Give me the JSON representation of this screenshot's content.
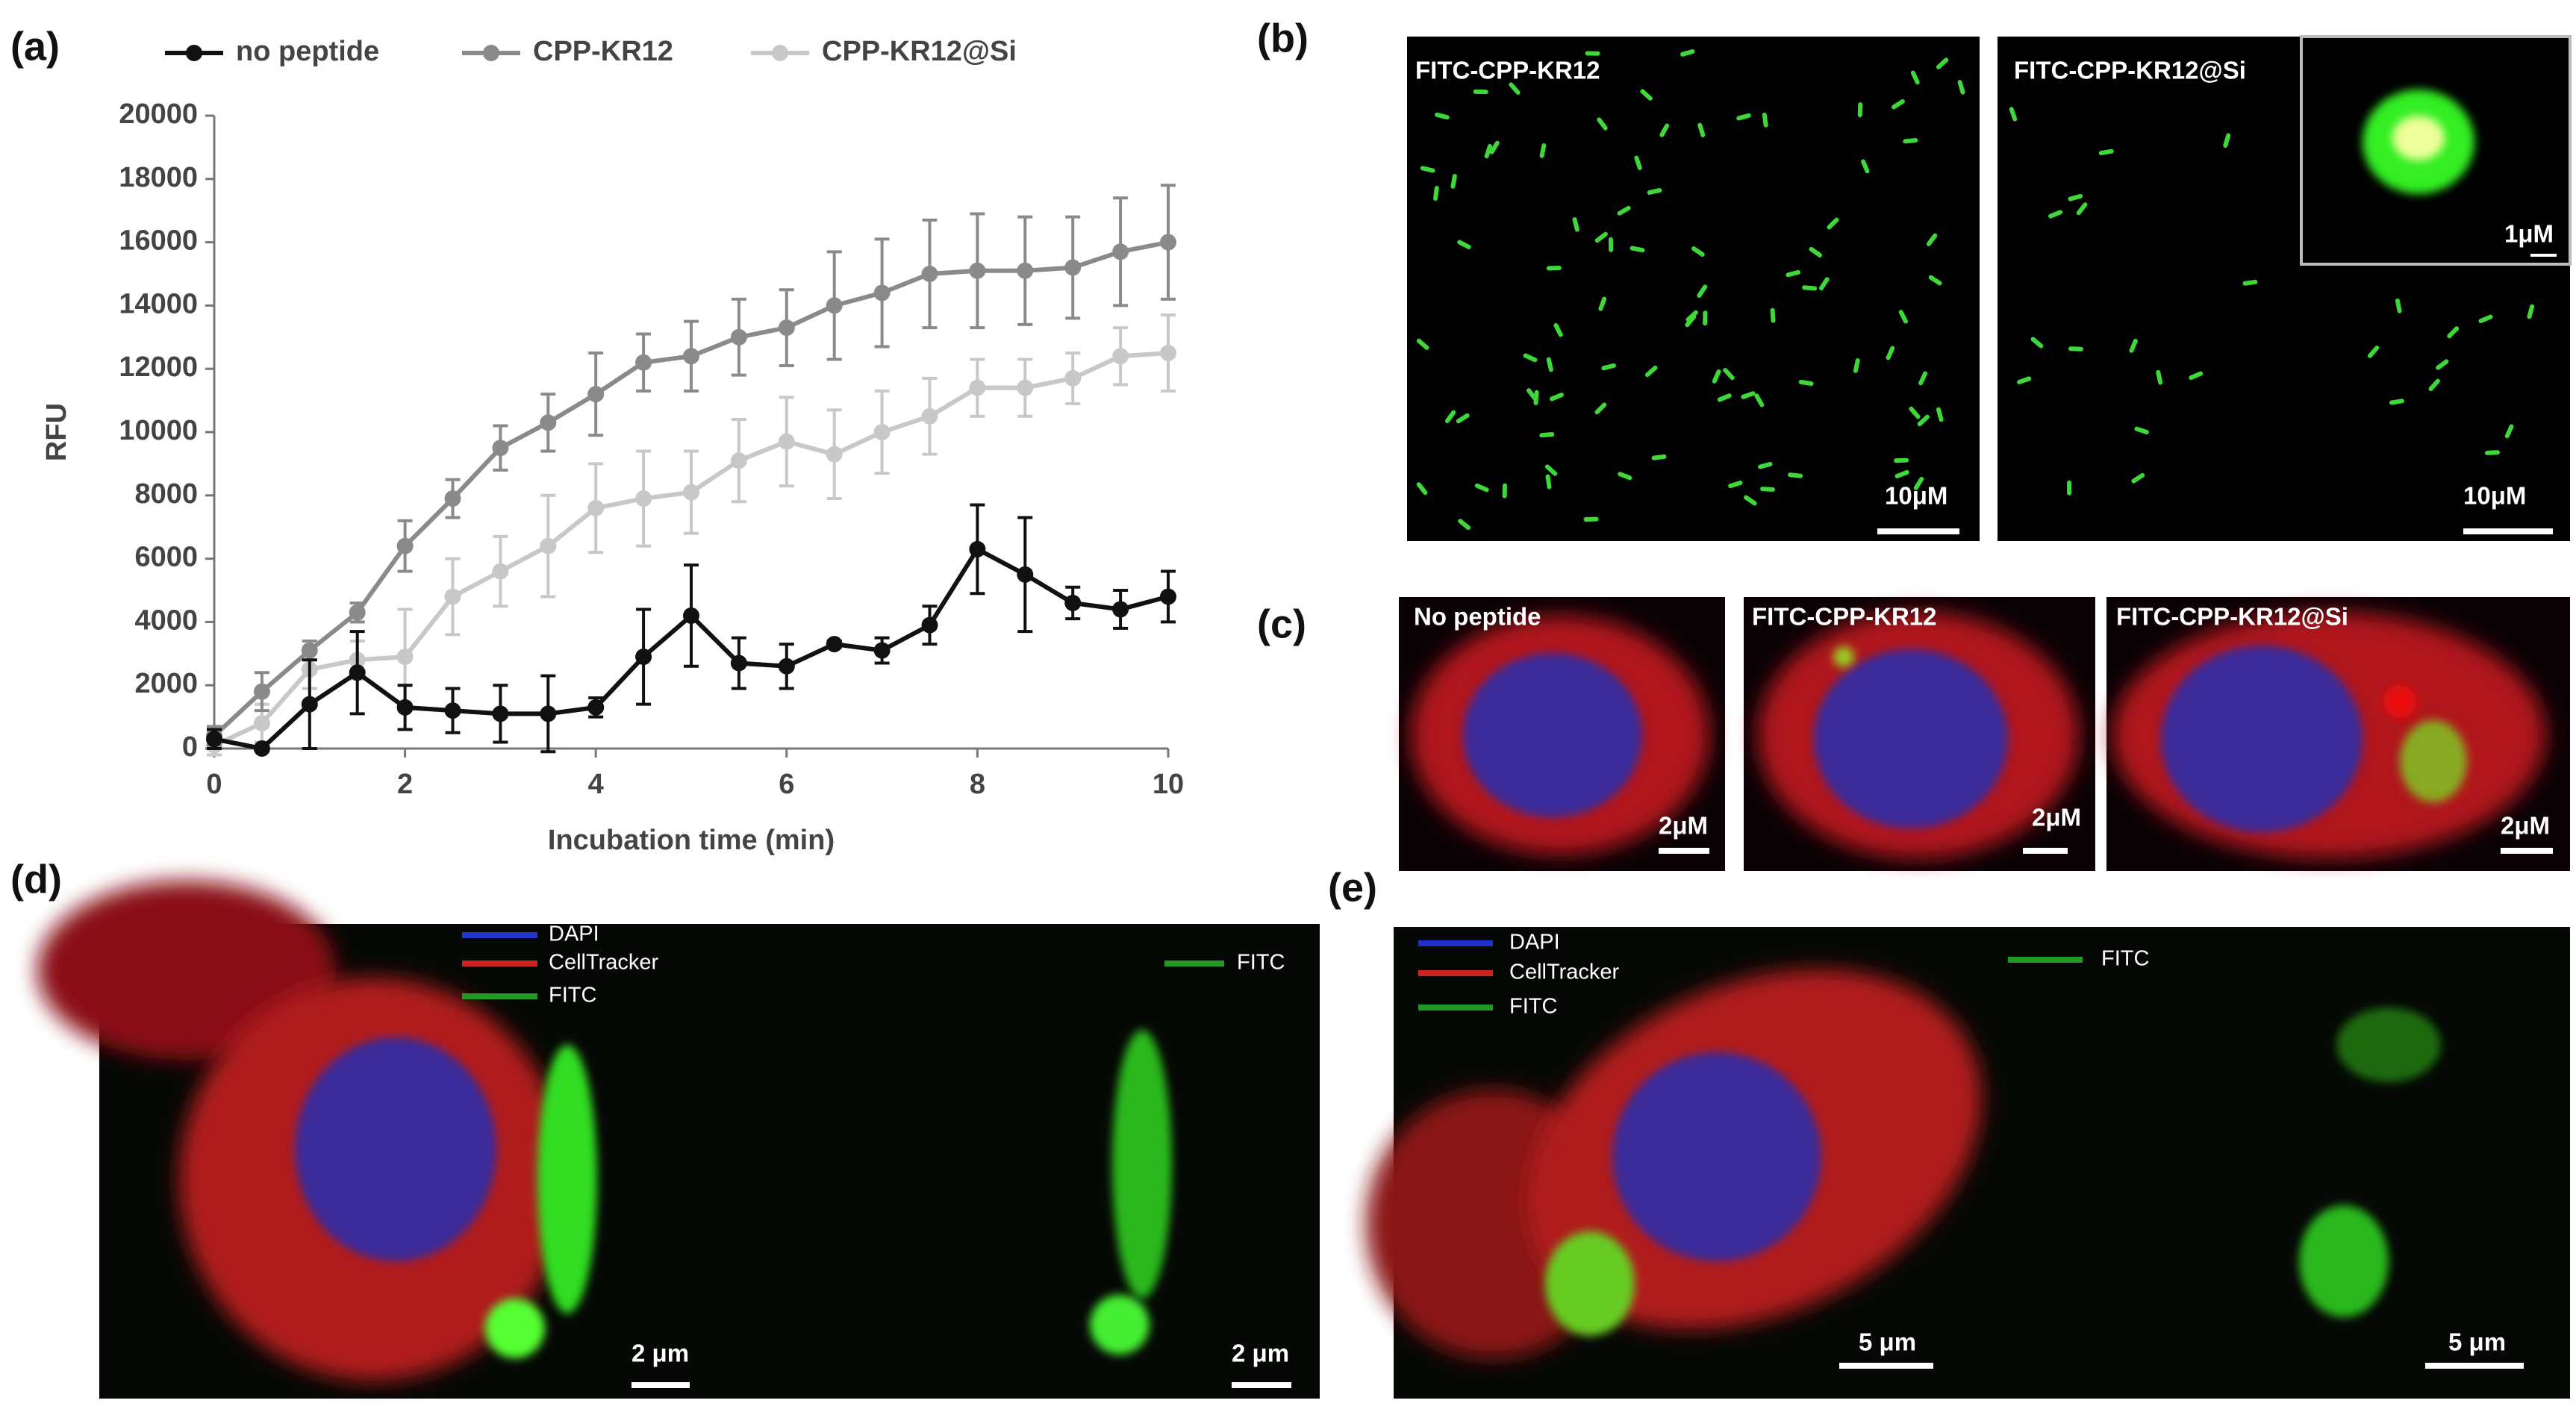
{
  "chart_data": {
    "type": "line",
    "xlabel": "Incubation time (min)",
    "ylabel": "RFU",
    "x": [
      0,
      0.5,
      1,
      1.5,
      2,
      2.5,
      3,
      3.5,
      4,
      4.5,
      5,
      5.5,
      6,
      6.5,
      7,
      7.5,
      8,
      8.5,
      9,
      9.5,
      10
    ],
    "xlim": [
      0,
      10
    ],
    "xticks": [
      0,
      2,
      4,
      6,
      8,
      10
    ],
    "ylim": [
      0,
      20000
    ],
    "yticks": [
      0,
      2000,
      4000,
      6000,
      8000,
      10000,
      12000,
      14000,
      16000,
      18000,
      20000
    ],
    "legend": "top",
    "series": [
      {
        "name": "no peptide",
        "color": "#111111",
        "values": [
          300,
          0,
          1400,
          2400,
          1300,
          1200,
          1100,
          1100,
          1300,
          2900,
          4200,
          2700,
          2600,
          3300,
          3100,
          3900,
          6300,
          5500,
          4600,
          4400,
          4800
        ],
        "errors": [
          300,
          0,
          1400,
          1300,
          700,
          700,
          900,
          1200,
          300,
          1500,
          1600,
          800,
          700,
          100,
          400,
          600,
          1400,
          1800,
          500,
          600,
          800
        ]
      },
      {
        "name": "CPP-KR12",
        "color": "#8a8a8a",
        "values": [
          400,
          1800,
          3100,
          4300,
          6400,
          7900,
          9500,
          10300,
          11200,
          12200,
          12400,
          13000,
          13300,
          14000,
          14400,
          15000,
          15100,
          15100,
          15200,
          15700,
          16000
        ],
        "errors": [
          300,
          600,
          300,
          300,
          800,
          600,
          700,
          900,
          1300,
          900,
          1100,
          1200,
          1200,
          1700,
          1700,
          1700,
          1800,
          1700,
          1600,
          1700,
          1800
        ]
      },
      {
        "name": "CPP-KR12@Si",
        "color": "#c8c8c8",
        "values": [
          100,
          800,
          2500,
          2800,
          2900,
          4800,
          5600,
          6400,
          7600,
          7900,
          8100,
          9100,
          9700,
          9300,
          10000,
          10500,
          11400,
          11400,
          11700,
          12400,
          12500
        ],
        "errors": [
          300,
          600,
          600,
          600,
          1500,
          1200,
          1100,
          1600,
          1400,
          1500,
          1300,
          1300,
          1400,
          1400,
          1300,
          1200,
          900,
          900,
          800,
          900,
          1200
        ]
      }
    ]
  },
  "figure": {
    "panel_labels": [
      "(a)",
      "(b)",
      "(c)",
      "(d)",
      "(e)"
    ],
    "b": [
      {
        "label": "FITC-CPP-KR12",
        "scale": "10μM"
      },
      {
        "label": "FITC-CPP-KR12@Si",
        "scale": "10μM",
        "inset_scale": "1μM"
      }
    ],
    "c": [
      {
        "label": "No peptide",
        "scale": "2μM"
      },
      {
        "label": "FITC-CPP-KR12",
        "scale": "2μM"
      },
      {
        "label": "FITC-CPP-KR12@Si",
        "scale": "2μM"
      }
    ],
    "d": {
      "legend": [
        "DAPI",
        "CellTracker",
        "FITC"
      ],
      "right_legend": "FITC",
      "scales": [
        "2 μm",
        "2 μm"
      ]
    },
    "e": {
      "legend": [
        "DAPI",
        "CellTracker",
        "FITC"
      ],
      "right_legend": "FITC",
      "scales": [
        "5 μm",
        "5 μm"
      ]
    }
  }
}
